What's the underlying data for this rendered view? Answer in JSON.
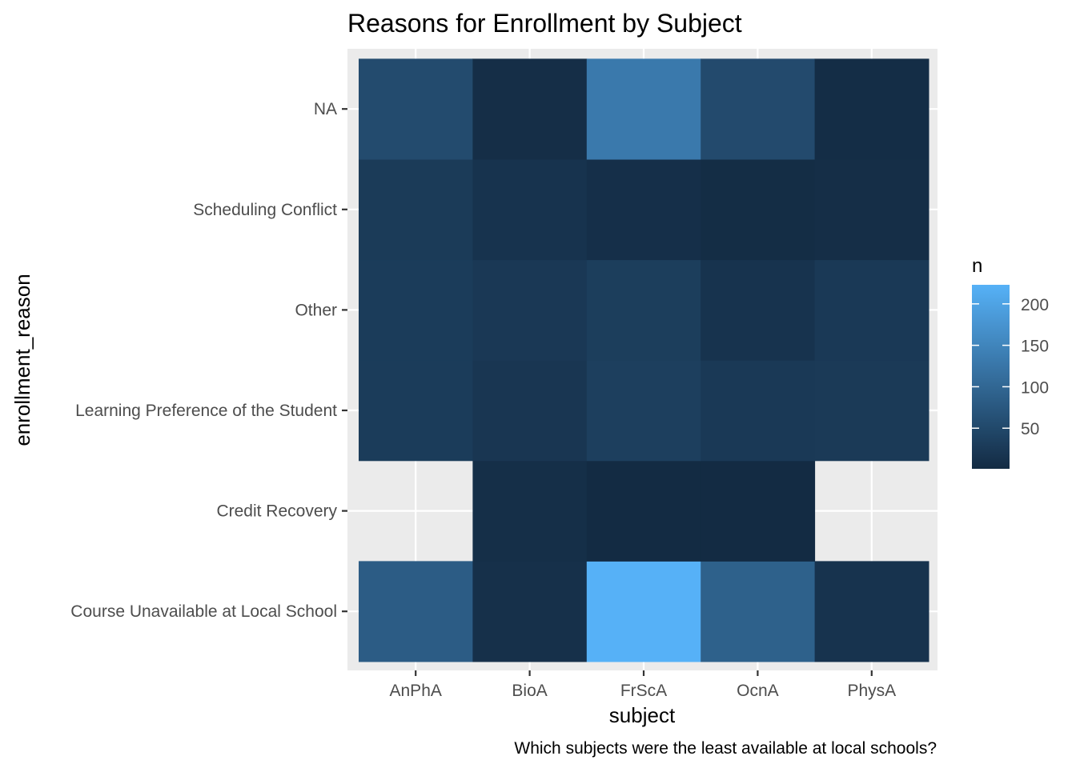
{
  "chart_data": {
    "type": "heatmap",
    "title": "Reasons for Enrollment by Subject",
    "xlabel": "subject",
    "ylabel": "enrollment_reason",
    "caption": "Which subjects were the least available at local schools?",
    "x_categories": [
      "AnPhA",
      "BioA",
      "FrScA",
      "OcnA",
      "PhysA"
    ],
    "y_categories": [
      "Course Unavailable at Local School",
      "Credit Recovery",
      "Learning Preference of the Student",
      "Other",
      "Scheduling Conflict",
      "NA"
    ],
    "values": [
      [
        83,
        10,
        223,
        90,
        14
      ],
      [
        null,
        7,
        1,
        1,
        null
      ],
      [
        29,
        20,
        34,
        24,
        26
      ],
      [
        29,
        23,
        32,
        15,
        24
      ],
      [
        27,
        15,
        8,
        4,
        6
      ],
      [
        54,
        6,
        130,
        53,
        5
      ]
    ],
    "legend": {
      "title": "n",
      "ticks": [
        50,
        100,
        150,
        200
      ],
      "range": [
        1,
        223
      ],
      "low_color": "#132B43",
      "high_color": "#56B1F7"
    },
    "grid": true,
    "panel_background": "#EBEBEB",
    "legend_position": "right"
  }
}
